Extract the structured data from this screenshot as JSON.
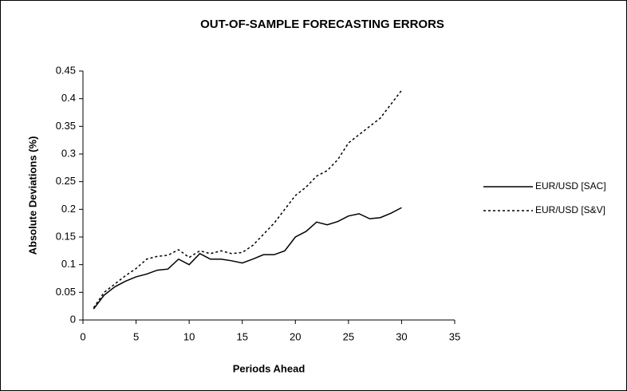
{
  "chart_data": {
    "type": "line",
    "title": "OUT-OF-SAMPLE FORECASTING ERRORS",
    "x_label": "Periods Ahead",
    "y_label": "Absolute Deviations (%)",
    "x": [
      1,
      2,
      3,
      4,
      5,
      6,
      7,
      8,
      9,
      10,
      11,
      12,
      13,
      14,
      15,
      16,
      17,
      18,
      19,
      20,
      21,
      22,
      23,
      24,
      25,
      26,
      27,
      28,
      29,
      30
    ],
    "series": [
      {
        "name": "EUR/USD [SAC]",
        "color": "#000000",
        "style": "solid",
        "values": [
          0.02,
          0.045,
          0.06,
          0.07,
          0.078,
          0.083,
          0.09,
          0.092,
          0.11,
          0.1,
          0.12,
          0.11,
          0.11,
          0.107,
          0.103,
          0.11,
          0.118,
          0.118,
          0.125,
          0.15,
          0.16,
          0.177,
          0.172,
          0.178,
          0.188,
          0.192,
          0.183,
          0.185,
          0.193,
          0.203
        ]
      },
      {
        "name": "EUR/USD [S&V]",
        "color": "#000000",
        "style": "dotted",
        "values": [
          0.022,
          0.05,
          0.065,
          0.08,
          0.093,
          0.11,
          0.115,
          0.117,
          0.127,
          0.113,
          0.125,
          0.12,
          0.125,
          0.12,
          0.122,
          0.135,
          0.155,
          0.175,
          0.2,
          0.225,
          0.24,
          0.26,
          0.27,
          0.29,
          0.32,
          0.335,
          0.35,
          0.365,
          0.39,
          0.415
        ]
      }
    ],
    "xlim": [
      0,
      35
    ],
    "xticks": [
      0,
      5,
      10,
      15,
      20,
      25,
      30,
      35
    ],
    "ylim": [
      0,
      0.45
    ],
    "yticks": [
      0,
      0.05,
      0.1,
      0.15,
      0.2,
      0.25,
      0.3,
      0.35,
      0.4,
      0.45
    ],
    "grid": false,
    "legend": "right"
  }
}
